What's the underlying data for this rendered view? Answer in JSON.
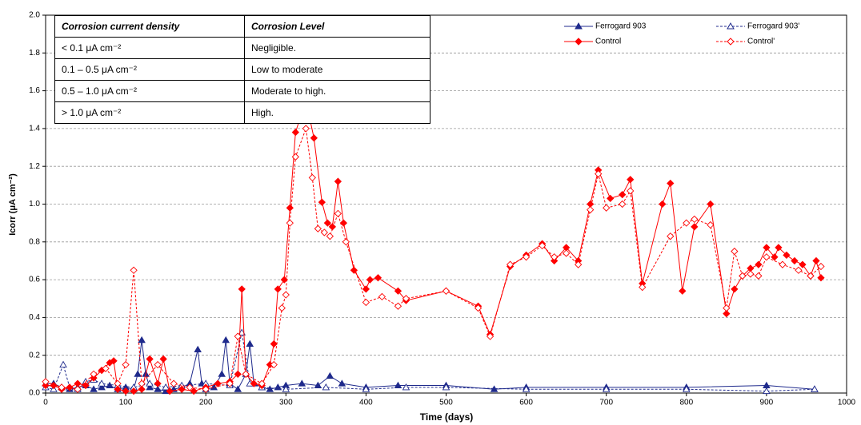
{
  "chart_data": {
    "type": "line",
    "xlabel": "Time (days)",
    "ylabel": "Icorr (μA cm⁻²)",
    "xlim": [
      0,
      1000
    ],
    "xticks": [
      0,
      100,
      200,
      300,
      400,
      500,
      600,
      700,
      800,
      900,
      1000
    ],
    "ylim": [
      0,
      2
    ],
    "yticks": [
      {
        "value": 0,
        "label": "0.0"
      },
      0.2,
      0.4,
      0.6,
      0.8,
      {
        "value": 1,
        "label": "1.0"
      },
      1.2,
      1.4,
      1.6,
      1.8,
      {
        "value": 2,
        "label": "2.0"
      }
    ],
    "grid": true,
    "legend": "upper right",
    "table": {
      "header": [
        "Corrosion current density",
        "Corrosion Level"
      ],
      "rows": [
        [
          "< 0.1 μA cm⁻²",
          "Negligible."
        ],
        [
          "0.1 – 0.5 μA cm⁻²",
          "Low to moderate"
        ],
        [
          "0.5 – 1.0 μA cm⁻²",
          "Moderate to high."
        ],
        [
          "> 1.0 μA cm⁻²",
          "High."
        ]
      ]
    },
    "series": [
      {
        "name": "Ferrogard 903",
        "color": "#1f2a8c",
        "line_style": "solid",
        "marker": "triangle",
        "marker_filled": true,
        "x": [
          0,
          10,
          20,
          30,
          40,
          50,
          60,
          70,
          80,
          90,
          100,
          110,
          115,
          120,
          125,
          130,
          140,
          150,
          160,
          170,
          180,
          190,
          195,
          200,
          210,
          220,
          225,
          230,
          240,
          250,
          255,
          260,
          270,
          280,
          290,
          300,
          320,
          340,
          355,
          370,
          400,
          440,
          500,
          560,
          600,
          700,
          800,
          900,
          960
        ],
        "values": [
          0.05,
          0.05,
          0.03,
          0.02,
          0.03,
          0.04,
          0.02,
          0.03,
          0.04,
          0.02,
          0.03,
          0.02,
          0.1,
          0.28,
          0.1,
          0.03,
          0.02,
          0.01,
          0.02,
          0.03,
          0.05,
          0.23,
          0.05,
          0.02,
          0.03,
          0.1,
          0.28,
          0.05,
          0.02,
          0.1,
          0.26,
          0.05,
          0.03,
          0.02,
          0.03,
          0.04,
          0.05,
          0.04,
          0.09,
          0.05,
          0.03,
          0.04,
          0.04,
          0.02,
          0.03,
          0.03,
          0.03,
          0.04,
          0.02
        ]
      },
      {
        "name": "Ferrogard 903'",
        "color": "#1f2a8c",
        "line_style": "dashed",
        "marker": "triangle",
        "marker_filled": false,
        "x": [
          0,
          10,
          22,
          30,
          40,
          50,
          60,
          70,
          90,
          110,
          130,
          150,
          170,
          200,
          230,
          245,
          255,
          270,
          300,
          350,
          400,
          450,
          500,
          600,
          700,
          800,
          900,
          960
        ],
        "values": [
          0.03,
          0.02,
          0.15,
          0.03,
          0.02,
          0.06,
          0.07,
          0.05,
          0.04,
          0.03,
          0.05,
          0.03,
          0.04,
          0.05,
          0.04,
          0.32,
          0.05,
          0.03,
          0.02,
          0.03,
          0.02,
          0.03,
          0.03,
          0.02,
          0.02,
          0.02,
          0.01,
          0.02
        ]
      },
      {
        "name": "Control",
        "color": "#ff0000",
        "line_style": "solid",
        "marker": "diamond",
        "marker_filled": true,
        "x": [
          0,
          10,
          20,
          30,
          40,
          50,
          60,
          70,
          80,
          85,
          90,
          100,
          110,
          120,
          130,
          140,
          147,
          155,
          170,
          185,
          200,
          215,
          230,
          240,
          245,
          250,
          260,
          270,
          280,
          285,
          290,
          298,
          305,
          312,
          325,
          335,
          345,
          352,
          358,
          365,
          372,
          385,
          400,
          405,
          415,
          440,
          450,
          500,
          540,
          555,
          580,
          600,
          620,
          635,
          650,
          665,
          680,
          690,
          705,
          720,
          730,
          745,
          770,
          780,
          795,
          810,
          830,
          850,
          860,
          870,
          880,
          890,
          900,
          910,
          915,
          925,
          935,
          945,
          955,
          962,
          968
        ],
        "values": [
          0.04,
          0.04,
          0.02,
          0.03,
          0.05,
          0.04,
          0.08,
          0.12,
          0.16,
          0.17,
          0.02,
          0.01,
          0.01,
          0.02,
          0.18,
          0.05,
          0.18,
          0.01,
          0.02,
          0.01,
          0.03,
          0.05,
          0.06,
          0.1,
          0.55,
          0.1,
          0.05,
          0.04,
          0.15,
          0.26,
          0.55,
          0.6,
          0.98,
          1.38,
          1.55,
          1.35,
          1.01,
          0.9,
          0.88,
          1.12,
          0.9,
          0.65,
          0.55,
          0.6,
          0.61,
          0.54,
          0.49,
          0.54,
          0.46,
          0.31,
          0.67,
          0.73,
          0.79,
          0.7,
          0.77,
          0.7,
          1.0,
          1.18,
          1.03,
          1.05,
          1.13,
          0.58,
          1.0,
          1.11,
          0.54,
          0.88,
          1.0,
          0.42,
          0.55,
          0.62,
          0.66,
          0.68,
          0.77,
          0.72,
          0.77,
          0.73,
          0.7,
          0.68,
          0.62,
          0.7,
          0.61
        ]
      },
      {
        "name": "Control'",
        "color": "#ff0000",
        "line_style": "dashed",
        "marker": "diamond",
        "marker_filled": false,
        "x": [
          0,
          20,
          40,
          60,
          75,
          90,
          100,
          110,
          120,
          140,
          160,
          180,
          200,
          230,
          240,
          250,
          270,
          285,
          295,
          300,
          305,
          312,
          325,
          333,
          340,
          348,
          355,
          365,
          375,
          400,
          420,
          440,
          450,
          500,
          540,
          555,
          580,
          600,
          620,
          635,
          650,
          665,
          680,
          690,
          700,
          720,
          730,
          745,
          780,
          800,
          810,
          830,
          850,
          860,
          870,
          880,
          890,
          900,
          920,
          940,
          955,
          968
        ],
        "values": [
          0.06,
          0.03,
          0.02,
          0.1,
          0.13,
          0.05,
          0.15,
          0.65,
          0.05,
          0.15,
          0.05,
          0.03,
          0.02,
          0.05,
          0.3,
          0.1,
          0.05,
          0.15,
          0.45,
          0.52,
          0.9,
          1.25,
          1.4,
          1.14,
          0.87,
          0.85,
          0.83,
          0.95,
          0.8,
          0.48,
          0.51,
          0.46,
          0.5,
          0.54,
          0.45,
          0.3,
          0.68,
          0.72,
          0.78,
          0.72,
          0.74,
          0.68,
          0.97,
          1.16,
          0.98,
          1.0,
          1.07,
          0.56,
          0.83,
          0.9,
          0.92,
          0.89,
          0.45,
          0.75,
          0.62,
          0.63,
          0.62,
          0.72,
          0.68,
          0.65,
          0.62,
          0.67
        ]
      }
    ]
  }
}
